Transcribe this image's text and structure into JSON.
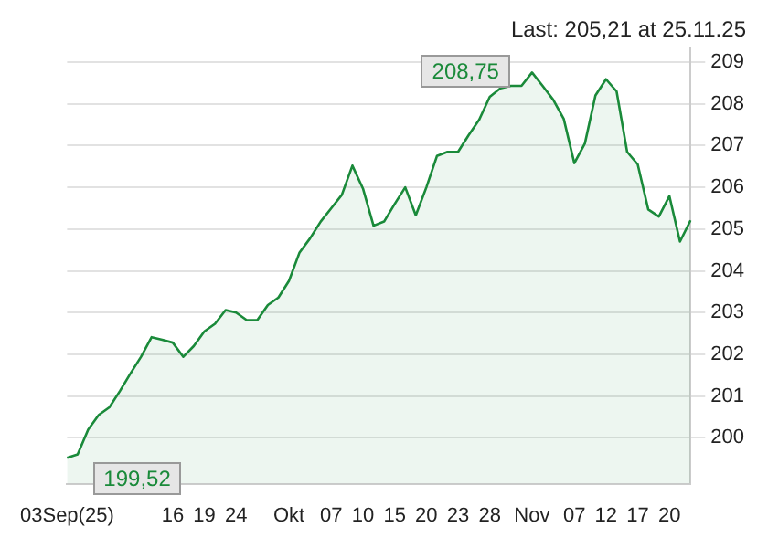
{
  "chart_data": {
    "type": "area",
    "categories": [
      "03Sep(25)",
      null,
      null,
      null,
      null,
      null,
      null,
      null,
      null,
      null,
      "16",
      null,
      null,
      "19",
      null,
      null,
      "24",
      null,
      null,
      null,
      null,
      "Okt",
      null,
      null,
      null,
      "07",
      null,
      null,
      "10",
      null,
      null,
      "15",
      null,
      null,
      "20",
      null,
      null,
      "23",
      null,
      null,
      "28",
      null,
      null,
      null,
      "Nov",
      null,
      null,
      null,
      "07",
      null,
      null,
      "12",
      null,
      null,
      "17",
      null,
      null,
      "20",
      null,
      null
    ],
    "series": [
      {
        "color": "#1a8a3a",
        "values": [
          199.52,
          199.6,
          200.2,
          200.55,
          200.73,
          201.12,
          201.54,
          201.94,
          202.41,
          202.35,
          202.28,
          201.94,
          202.2,
          202.55,
          202.73,
          203.06,
          203.0,
          202.82,
          202.82,
          203.18,
          203.36,
          203.76,
          204.44,
          204.78,
          205.18,
          205.5,
          205.82,
          206.52,
          205.97,
          205.08,
          205.18,
          205.6,
          206.0,
          205.33,
          206.0,
          206.75,
          206.85,
          206.85,
          207.25,
          207.62,
          208.17,
          208.37,
          208.43,
          208.43,
          208.75,
          208.43,
          208.1,
          207.64,
          206.58,
          207.05,
          208.2,
          208.59,
          208.3,
          206.85,
          206.55,
          205.47,
          205.3,
          205.79,
          204.7,
          205.21
        ]
      }
    ],
    "ylim": [
      198.9,
      209.35
    ],
    "yticks": [
      200,
      201,
      202,
      203,
      204,
      205,
      206,
      207,
      208,
      209
    ],
    "grid": "y",
    "annotations": [
      "Last: 205,21 at 25.11.25",
      {
        "text": "208,75",
        "x": "Nov",
        "y": 208.75
      },
      {
        "text": "199,52",
        "x": "03Sep(25)",
        "y": 199.52
      }
    ]
  }
}
